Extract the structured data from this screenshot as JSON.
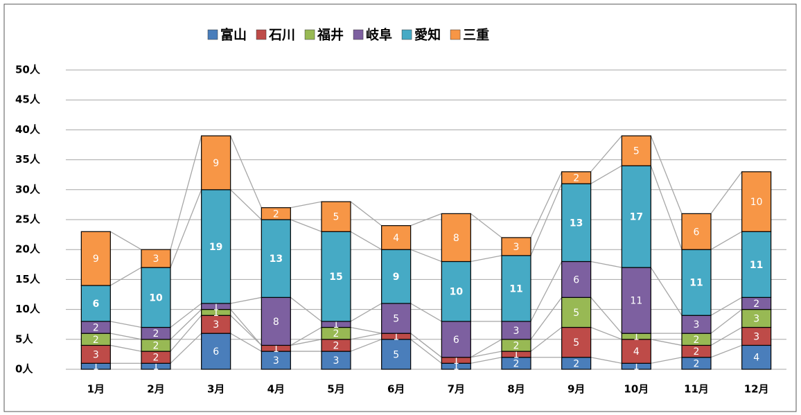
{
  "chart_data": {
    "type": "stacked_bar",
    "categories": [
      "1月",
      "2月",
      "3月",
      "4月",
      "5月",
      "6月",
      "7月",
      "8月",
      "9月",
      "10月",
      "11月",
      "12月"
    ],
    "series": [
      {
        "name": "富山",
        "color": "#4a7ebb",
        "values": [
          1,
          1,
          6,
          3,
          3,
          5,
          1,
          2,
          2,
          1,
          2,
          4
        ]
      },
      {
        "name": "石川",
        "color": "#be4b48",
        "values": [
          3,
          2,
          3,
          1,
          2,
          1,
          1,
          1,
          5,
          4,
          2,
          3
        ]
      },
      {
        "name": "福井",
        "color": "#98b954",
        "values": [
          2,
          2,
          1,
          0,
          2,
          0,
          0,
          2,
          5,
          1,
          2,
          3
        ]
      },
      {
        "name": "岐阜",
        "color": "#7d60a0",
        "values": [
          2,
          2,
          1,
          8,
          1,
          5,
          6,
          3,
          6,
          11,
          3,
          2
        ]
      },
      {
        "name": "愛知",
        "color": "#46aac5",
        "values": [
          6,
          10,
          19,
          13,
          15,
          9,
          10,
          11,
          13,
          17,
          11,
          11
        ]
      },
      {
        "name": "三重",
        "color": "#f79646",
        "values": [
          9,
          3,
          9,
          2,
          5,
          4,
          8,
          3,
          2,
          5,
          6,
          10
        ]
      }
    ],
    "ylim": [
      0,
      50
    ],
    "yticks": [
      {
        "value": 0,
        "label": "0人"
      },
      {
        "value": 5,
        "label": "5人"
      },
      {
        "value": 10,
        "label": "10人"
      },
      {
        "value": 15,
        "label": "15人"
      },
      {
        "value": 20,
        "label": "20人"
      },
      {
        "value": 25,
        "label": "25人"
      },
      {
        "value": 30,
        "label": "30人"
      },
      {
        "value": 35,
        "label": "35人"
      },
      {
        "value": 40,
        "label": "40人"
      },
      {
        "value": 45,
        "label": "45人"
      },
      {
        "value": 50,
        "label": "50人"
      }
    ],
    "grid": true,
    "legend": "top"
  }
}
